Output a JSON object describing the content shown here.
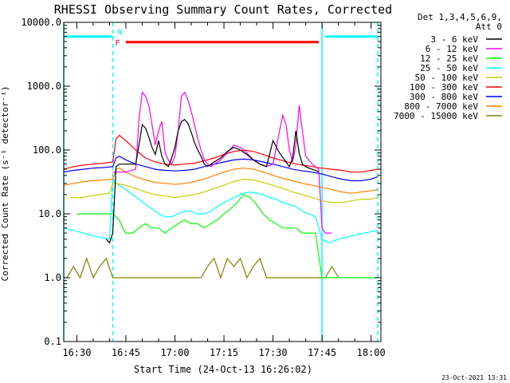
{
  "chart_data": {
    "type": "line",
    "title": "RHESSI Observing Summary Count Rates, Corrected",
    "xlabel": "Start Time (24-Oct-13 16:26:02)",
    "ylabel": "Corrected Count Rate (s⁻¹ detector⁻¹)",
    "y_scale": "log",
    "xlim": [
      "16:26",
      "18:03"
    ],
    "ylim": [
      0.1,
      10000
    ],
    "grid": false,
    "x_tick_labels": [
      "16:30",
      "16:45",
      "17:00",
      "17:15",
      "17:30",
      "17:45",
      "18:00"
    ],
    "y_tick_labels": [
      "0.1",
      "1.0",
      "10.0",
      "100.0",
      "1000.0",
      "10000.0"
    ],
    "legend_header": [
      "Det 1,3,4,5,6,9,",
      "Att 0"
    ],
    "legend_position": "top-right, outside plot",
    "footer_date": "23-Oct-2021 13:31",
    "bars": [
      {
        "label": "N",
        "color": "#00ffff",
        "segments": [
          [
            "16:26",
            "16:41"
          ],
          [
            "17:46",
            "18:02"
          ]
        ],
        "y": 6000
      },
      {
        "label": "F",
        "color": "#ff0000",
        "segments": [
          [
            "16:45",
            "17:44"
          ]
        ],
        "y": 4900
      }
    ],
    "vertical_lines": [
      {
        "time": "16:26",
        "color": "#00ffff",
        "style": "solid"
      },
      {
        "time": "16:41",
        "color": "#00ffff",
        "style": "dashed"
      },
      {
        "time": "17:45",
        "color": "#00ffff",
        "style": "solid"
      },
      {
        "time": "18:02",
        "color": "#00ffff",
        "style": "dashed"
      }
    ],
    "series": [
      {
        "name": "3 - 6 keV",
        "color": "#000000",
        "x": [
          "16:39",
          "16:40",
          "16:41",
          "16:42",
          "16:43",
          "16:45",
          "16:48",
          "16:49",
          "16:50",
          "16:51",
          "16:52",
          "16:53",
          "16:54",
          "16:55",
          "16:56",
          "16:57",
          "16:58",
          "16:59",
          "17:00",
          "17:01",
          "17:02",
          "17:03",
          "17:04",
          "17:05",
          "17:06",
          "17:07",
          "17:08",
          "17:09",
          "17:10",
          "17:11",
          "17:12",
          "17:14",
          "17:16",
          "17:18",
          "17:20",
          "17:22",
          "17:24",
          "17:26",
          "17:28",
          "17:30",
          "17:32",
          "17:34",
          "17:35",
          "17:36",
          "17:37",
          "17:38",
          "17:39",
          "17:40",
          "17:41",
          "17:42",
          "17:43",
          "17:44"
        ],
        "y": [
          4,
          3.5,
          5,
          55,
          60,
          60,
          60,
          120,
          250,
          220,
          160,
          110,
          85,
          140,
          80,
          60,
          55,
          75,
          110,
          200,
          280,
          300,
          260,
          190,
          130,
          100,
          80,
          60,
          55,
          60,
          65,
          75,
          95,
          110,
          100,
          85,
          70,
          60,
          55,
          140,
          90,
          65,
          55,
          75,
          200,
          90,
          60,
          55,
          52,
          50,
          48,
          45
        ]
      },
      {
        "name": "6 - 12 keV",
        "color": "#ff00ff",
        "x": [
          "16:41",
          "16:42",
          "16:43",
          "16:45",
          "16:48",
          "16:49",
          "16:50",
          "16:51",
          "16:52",
          "16:53",
          "16:54",
          "16:55",
          "16:56",
          "16:57",
          "16:58",
          "16:59",
          "17:00",
          "17:01",
          "17:02",
          "17:03",
          "17:04",
          "17:05",
          "17:06",
          "17:07",
          "17:08",
          "17:09",
          "17:10",
          "17:11",
          "17:12",
          "17:14",
          "17:16",
          "17:18",
          "17:20",
          "17:22",
          "17:24",
          "17:26",
          "17:28",
          "17:30",
          "17:32",
          "17:33",
          "17:34",
          "17:35",
          "17:36",
          "17:37",
          "17:38",
          "17:39",
          "17:40",
          "17:42",
          "17:44",
          "17:45",
          "17:46",
          "17:48"
        ],
        "y": [
          45,
          45,
          45,
          45,
          50,
          300,
          800,
          700,
          500,
          250,
          120,
          200,
          280,
          90,
          70,
          60,
          80,
          200,
          700,
          800,
          600,
          400,
          250,
          150,
          100,
          70,
          60,
          55,
          60,
          70,
          90,
          120,
          110,
          90,
          70,
          60,
          55,
          60,
          200,
          350,
          250,
          100,
          65,
          120,
          500,
          200,
          80,
          60,
          50,
          6,
          5,
          5
        ]
      },
      {
        "name": "12 - 25 keV",
        "color": "#00ff00",
        "x": [
          "16:30",
          "16:34",
          "16:38",
          "16:41",
          "16:42",
          "16:43",
          "16:44",
          "16:45",
          "16:47",
          "16:49",
          "16:51",
          "16:53",
          "16:55",
          "16:57",
          "16:59",
          "17:01",
          "17:03",
          "17:05",
          "17:07",
          "17:09",
          "17:11",
          "17:13",
          "17:15",
          "17:17",
          "17:19",
          "17:21",
          "17:23",
          "17:25",
          "17:27",
          "17:29",
          "17:31",
          "17:33",
          "17:35",
          "17:37",
          "17:39",
          "17:41",
          "17:43",
          "17:45",
          "17:48",
          "17:52",
          "17:56",
          "18:00",
          "18:02"
        ],
        "y": [
          10,
          10,
          10,
          10,
          9,
          8,
          6,
          5,
          5,
          6,
          7,
          6,
          6,
          5,
          6,
          7,
          8,
          7,
          7,
          6,
          7,
          8,
          10,
          12,
          15,
          20,
          18,
          14,
          10,
          8,
          7,
          6,
          6,
          6,
          5,
          5,
          5,
          1,
          1,
          1,
          1,
          1,
          1
        ]
      },
      {
        "name": "25 - 50 keV",
        "color": "#00ffff",
        "x": [
          "16:26",
          "16:29",
          "16:32",
          "16:35",
          "16:38",
          "16:40",
          "16:41",
          "16:42",
          "16:43",
          "16:44",
          "16:45",
          "16:47",
          "16:49",
          "16:51",
          "16:53",
          "16:55",
          "16:57",
          "16:59",
          "17:01",
          "17:03",
          "17:05",
          "17:07",
          "17:09",
          "17:11",
          "17:13",
          "17:15",
          "17:17",
          "17:19",
          "17:21",
          "17:23",
          "17:25",
          "17:27",
          "17:29",
          "17:31",
          "17:33",
          "17:35",
          "17:37",
          "17:39",
          "17:41",
          "17:43",
          "17:45",
          "17:47",
          "17:50",
          "17:54",
          "17:58",
          "18:02"
        ],
        "y": [
          6,
          5.5,
          5,
          4.5,
          4.2,
          4,
          35,
          30,
          28,
          26,
          24,
          20,
          17,
          14,
          12,
          10,
          9,
          9,
          10,
          11,
          11,
          10,
          10,
          11,
          13,
          15,
          17,
          19,
          21,
          22,
          21,
          20,
          18,
          17,
          15,
          14,
          13,
          11,
          10,
          9,
          4,
          3.5,
          4,
          4.5,
          5,
          5.5
        ]
      },
      {
        "name": "50 - 100 keV",
        "color": "#cccc00",
        "x": [
          "16:28",
          "16:31",
          "16:34",
          "16:37",
          "16:40",
          "16:41",
          "16:42",
          "16:45",
          "16:48",
          "16:51",
          "16:54",
          "16:57",
          "17:00",
          "17:03",
          "17:06",
          "17:09",
          "17:12",
          "17:15",
          "17:18",
          "17:21",
          "17:24",
          "17:27",
          "17:30",
          "17:33",
          "17:36",
          "17:39",
          "17:42",
          "17:45",
          "17:48",
          "17:51",
          "17:54",
          "17:57",
          "18:00",
          "18:02"
        ],
        "y": [
          18,
          18,
          19,
          20,
          21,
          30,
          30,
          28,
          25,
          22,
          20,
          19,
          18,
          19,
          20,
          22,
          25,
          28,
          32,
          35,
          34,
          31,
          28,
          25,
          22,
          20,
          18,
          16,
          15,
          15,
          16,
          17,
          17,
          18
        ]
      },
      {
        "name": "100 - 300 keV",
        "color": "#ff0000",
        "x": [
          "16:26",
          "16:29",
          "16:32",
          "16:35",
          "16:38",
          "16:41",
          "16:42",
          "16:43",
          "16:45",
          "16:48",
          "16:51",
          "16:54",
          "16:57",
          "17:00",
          "17:03",
          "17:06",
          "17:09",
          "17:12",
          "17:15",
          "17:18",
          "17:21",
          "17:24",
          "17:27",
          "17:30",
          "17:33",
          "17:36",
          "17:39",
          "17:42",
          "17:45",
          "17:48",
          "17:51",
          "17:54",
          "17:57",
          "18:00",
          "18:02"
        ],
        "y": [
          50,
          55,
          58,
          60,
          62,
          65,
          150,
          170,
          140,
          100,
          75,
          65,
          60,
          58,
          60,
          62,
          68,
          75,
          85,
          95,
          100,
          95,
          85,
          75,
          68,
          62,
          58,
          55,
          52,
          50,
          48,
          45,
          45,
          48,
          50
        ]
      },
      {
        "name": "300 - 800 keV",
        "color": "#0000ff",
        "x": [
          "16:26",
          "16:29",
          "16:32",
          "16:35",
          "16:38",
          "16:41",
          "16:42",
          "16:43",
          "16:45",
          "16:48",
          "16:51",
          "16:54",
          "16:57",
          "17:00",
          "17:03",
          "17:06",
          "17:09",
          "17:12",
          "17:15",
          "17:18",
          "17:21",
          "17:24",
          "17:27",
          "17:30",
          "17:33",
          "17:36",
          "17:39",
          "17:42",
          "17:45",
          "17:48",
          "17:51",
          "17:54",
          "17:57",
          "18:00",
          "18:02"
        ],
        "y": [
          45,
          48,
          50,
          52,
          53,
          55,
          75,
          80,
          70,
          60,
          55,
          50,
          48,
          47,
          48,
          50,
          55,
          60,
          65,
          70,
          72,
          70,
          65,
          60,
          55,
          50,
          47,
          45,
          42,
          38,
          35,
          33,
          33,
          35,
          38
        ]
      },
      {
        "name": "800 - 7000 keV",
        "color": "#ff8000",
        "x": [
          "16:26",
          "16:29",
          "16:32",
          "16:35",
          "16:38",
          "16:41",
          "16:42",
          "16:43",
          "16:45",
          "16:48",
          "16:51",
          "16:54",
          "16:57",
          "17:00",
          "17:03",
          "17:06",
          "17:09",
          "17:12",
          "17:15",
          "17:18",
          "17:21",
          "17:24",
          "17:27",
          "17:30",
          "17:33",
          "17:36",
          "17:39",
          "17:42",
          "17:45",
          "17:48",
          "17:51",
          "17:54",
          "17:57",
          "18:00",
          "18:02"
        ],
        "y": [
          28,
          30,
          32,
          33,
          34,
          35,
          50,
          52,
          45,
          38,
          34,
          31,
          30,
          29,
          30,
          32,
          35,
          40,
          45,
          50,
          52,
          50,
          45,
          40,
          36,
          33,
          30,
          28,
          26,
          24,
          22,
          21,
          22,
          23,
          24
        ]
      },
      {
        "name": "7000 - 15000 keV",
        "color": "#808000",
        "x": [
          "16:27",
          "16:29",
          "16:31",
          "16:33",
          "16:35",
          "16:37",
          "16:39",
          "16:41",
          "17:08",
          "17:10",
          "17:12",
          "17:14",
          "17:16",
          "17:18",
          "17:20",
          "17:22",
          "17:24",
          "17:26",
          "17:28",
          "17:30",
          "17:46",
          "17:48",
          "17:50"
        ],
        "y": [
          1,
          1.5,
          1,
          2,
          1,
          1.5,
          2,
          1,
          1,
          1.5,
          2,
          1,
          2,
          1.5,
          2,
          1,
          1.5,
          2,
          1,
          1,
          1,
          1.5,
          1
        ]
      }
    ]
  }
}
